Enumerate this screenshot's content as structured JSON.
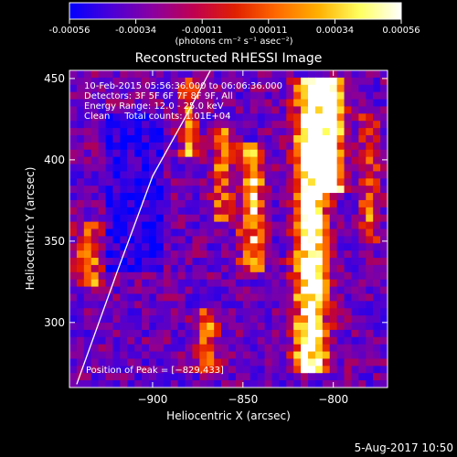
{
  "colorbar": {
    "ticks": [
      "-0.00056",
      "-0.00034",
      "-0.00011",
      "0.00011",
      "0.00034",
      "0.00056"
    ],
    "units": "(photons cm⁻² s⁻¹ asec⁻²)",
    "colors": [
      "#0000ff",
      "#4a00d8",
      "#8a00a0",
      "#c00050",
      "#e02000",
      "#ff6a00",
      "#ffb000",
      "#ffff60",
      "#ffffff"
    ]
  },
  "chart_data": {
    "type": "heatmap",
    "title": "Reconstructed RHESSI Image",
    "xlabel": "Heliocentric X (arcsec)",
    "ylabel": "Heliocentric Y (arcsec)",
    "xlim": [
      -946,
      -770
    ],
    "ylim": [
      260,
      455
    ],
    "x_ticks": [
      -900,
      -850,
      -800
    ],
    "y_ticks": [
      300,
      350,
      400,
      450
    ],
    "x_tick_labels": [
      "−900",
      "−850",
      "−800"
    ],
    "y_tick_labels": [
      "300",
      "350",
      "400",
      "450"
    ],
    "clim": [
      -0.00056,
      0.00056
    ],
    "peak": [
      -829,
      433
    ],
    "annotations": [
      "10-Feb-2015 05:56:36.000 to 06:06:36.000",
      "Detectors: 3F 5F 6F 7F 8F 9F, All",
      "Energy Range: 12.0 - 25.0 keV",
      "Clean     Total counts: 1.01E+04"
    ],
    "peak_label": "Position of Peak = [−829,433]",
    "limb_curve": [
      [
        -942,
        262
      ],
      [
        -920,
        330
      ],
      [
        -900,
        390
      ],
      [
        -880,
        430
      ],
      [
        -868,
        455
      ]
    ]
  },
  "footer": {
    "date": "5-Aug-2017 10:50"
  }
}
